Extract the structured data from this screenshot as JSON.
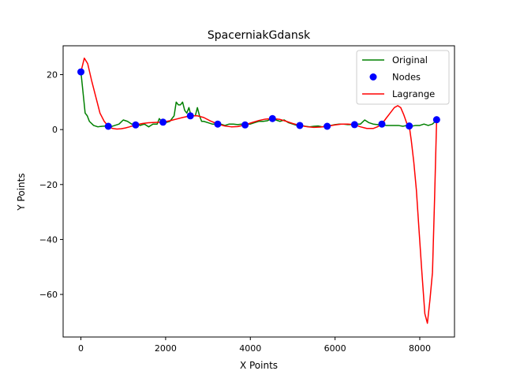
{
  "chart_data": {
    "type": "line",
    "title": "SpacerniakGdansk",
    "xlabel": "X Points",
    "ylabel": "Y Points",
    "xlim": [
      -420,
      8820
    ],
    "ylim": [
      -75.5,
      30.5
    ],
    "xticks": [
      0,
      2000,
      4000,
      6000,
      8000
    ],
    "xtick_labels": [
      "0",
      "2000",
      "4000",
      "6000",
      "8000"
    ],
    "yticks": [
      20,
      0,
      -20,
      -40,
      -60
    ],
    "ytick_labels": [
      "20",
      "0",
      "−20",
      "−40",
      "−60"
    ],
    "grid": false,
    "legend_position": "top-right",
    "series": [
      {
        "name": "Original",
        "kind": "line",
        "color": "#008000",
        "x": [
          0,
          60,
          100,
          150,
          200,
          300,
          400,
          500,
          600,
          700,
          800,
          900,
          1000,
          1100,
          1200,
          1300,
          1400,
          1500,
          1600,
          1700,
          1800,
          1850,
          1900,
          2000,
          2100,
          2200,
          2250,
          2300,
          2350,
          2400,
          2450,
          2500,
          2550,
          2600,
          2650,
          2700,
          2750,
          2800,
          2850,
          2900,
          3000,
          3100,
          3200,
          3300,
          3400,
          3500,
          3600,
          3700,
          3800,
          3900,
          4000,
          4100,
          4200,
          4300,
          4400,
          4500,
          4600,
          4700,
          4800,
          4900,
          5000,
          5100,
          5200,
          5300,
          5400,
          5500,
          5600,
          5700,
          5800,
          5900,
          6000,
          6100,
          6200,
          6300,
          6400,
          6500,
          6600,
          6700,
          6800,
          6900,
          7000,
          7100,
          7200,
          7300,
          7400,
          7500,
          7600,
          7700,
          7800,
          7900,
          8000,
          8100,
          8200,
          8300,
          8400
        ],
        "y": [
          21,
          12,
          6,
          5,
          3,
          1.5,
          1,
          1.2,
          1.3,
          1,
          1.5,
          2,
          3.5,
          3,
          2,
          2.2,
          1.5,
          2,
          1,
          2,
          2,
          4,
          3,
          2.5,
          3,
          5,
          10,
          9,
          9,
          10,
          7,
          6,
          8,
          5,
          5,
          5,
          8,
          5,
          3,
          3,
          2.5,
          2,
          2,
          2,
          1.5,
          2,
          2,
          1.8,
          2,
          2,
          2,
          2.5,
          3,
          3,
          3.2,
          4,
          3.5,
          3,
          3.5,
          2.5,
          2,
          1.5,
          1.5,
          1.2,
          1,
          1.2,
          1.3,
          1,
          1.2,
          1.5,
          1.8,
          2,
          2,
          1.8,
          1.8,
          2,
          2,
          3.5,
          2.5,
          2,
          1.8,
          2,
          1.5,
          1.5,
          1.5,
          1.5,
          1.2,
          1.5,
          1.2,
          1.5,
          1.5,
          2,
          1.5,
          2,
          3.5
        ]
      },
      {
        "name": "Nodes",
        "kind": "scatter",
        "color": "#0000ff",
        "x": [
          0,
          646,
          1292,
          1938,
          2584,
          3230,
          3876,
          4522,
          5168,
          5814,
          6460,
          7106,
          7752,
          8398
        ],
        "y": [
          21,
          1.2,
          1.7,
          2.7,
          5,
          2,
          1.7,
          4,
          1.5,
          1.2,
          1.8,
          2,
          1.3,
          3.6
        ]
      },
      {
        "name": "Lagrange",
        "kind": "line",
        "color": "#ff0000",
        "x": [
          0,
          80,
          160,
          250,
          350,
          450,
          550,
          646,
          750,
          850,
          950,
          1050,
          1150,
          1292,
          1450,
          1600,
          1750,
          1938,
          2100,
          2250,
          2400,
          2584,
          2750,
          2900,
          3050,
          3230,
          3400,
          3550,
          3700,
          3876,
          4050,
          4200,
          4350,
          4522,
          4700,
          4850,
          5000,
          5168,
          5350,
          5500,
          5650,
          5814,
          6000,
          6150,
          6300,
          6460,
          6600,
          6750,
          6900,
          7000,
          7106,
          7200,
          7300,
          7400,
          7480,
          7550,
          7620,
          7700,
          7752,
          7800,
          7860,
          7920,
          7980,
          8050,
          8120,
          8180,
          8240,
          8300,
          8350,
          8398
        ],
        "y": [
          21,
          26,
          24,
          18,
          12,
          6,
          3,
          1.2,
          0.4,
          0.2,
          0.3,
          0.6,
          1.0,
          1.7,
          2.2,
          2.5,
          2.6,
          2.7,
          3.2,
          3.8,
          4.4,
          5,
          5,
          4.4,
          3.2,
          2,
          1.3,
          1.0,
          1.1,
          1.7,
          2.6,
          3.3,
          3.8,
          4,
          3.7,
          3.0,
          2.2,
          1.5,
          1.0,
          0.8,
          0.9,
          1.2,
          1.7,
          2.0,
          2.0,
          1.8,
          1.0,
          0.4,
          0.4,
          1.0,
          2,
          4,
          6,
          8,
          8.7,
          8,
          5.5,
          2,
          1.3,
          -4,
          -12,
          -22,
          -36,
          -52,
          -67,
          -70.5,
          -62,
          -52,
          -25,
          3.6
        ]
      }
    ]
  }
}
